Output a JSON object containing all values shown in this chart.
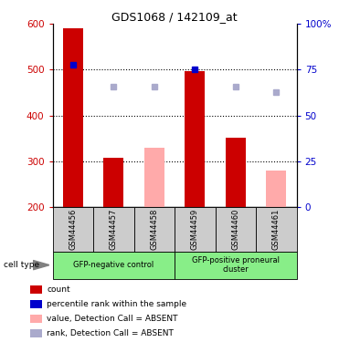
{
  "title": "GDS1068 / 142109_at",
  "samples": [
    "GSM44456",
    "GSM44457",
    "GSM44458",
    "GSM44459",
    "GSM44460",
    "GSM44461"
  ],
  "count_values": [
    590,
    308,
    null,
    497,
    352,
    null
  ],
  "count_absent_values": [
    null,
    null,
    330,
    null,
    null,
    280
  ],
  "rank_values": [
    510,
    null,
    null,
    500,
    null,
    null
  ],
  "rank_absent_values": [
    null,
    462,
    462,
    null,
    462,
    450
  ],
  "ylim_left": [
    200,
    600
  ],
  "ylim_right": [
    0,
    100
  ],
  "yticks_left": [
    200,
    300,
    400,
    500,
    600
  ],
  "yticks_right": [
    0,
    25,
    50,
    75,
    100
  ],
  "ytick_labels_right": [
    "0",
    "25",
    "50",
    "75",
    "100%"
  ],
  "bar_width": 0.5,
  "count_color": "#cc0000",
  "count_absent_color": "#ffaaaa",
  "rank_color": "#0000cc",
  "rank_absent_color": "#aaaacc",
  "cell_type_labels": [
    "GFP-negative control",
    "GFP-positive proneural\ncluster"
  ],
  "cell_type_bg": "#88ee88",
  "sample_bg": "#cccccc",
  "legend_items": [
    {
      "color": "#cc0000",
      "label": "count"
    },
    {
      "color": "#0000cc",
      "label": "percentile rank within the sample"
    },
    {
      "color": "#ffaaaa",
      "label": "value, Detection Call = ABSENT"
    },
    {
      "color": "#aaaacc",
      "label": "rank, Detection Call = ABSENT"
    }
  ],
  "cell_type_label": "cell type"
}
